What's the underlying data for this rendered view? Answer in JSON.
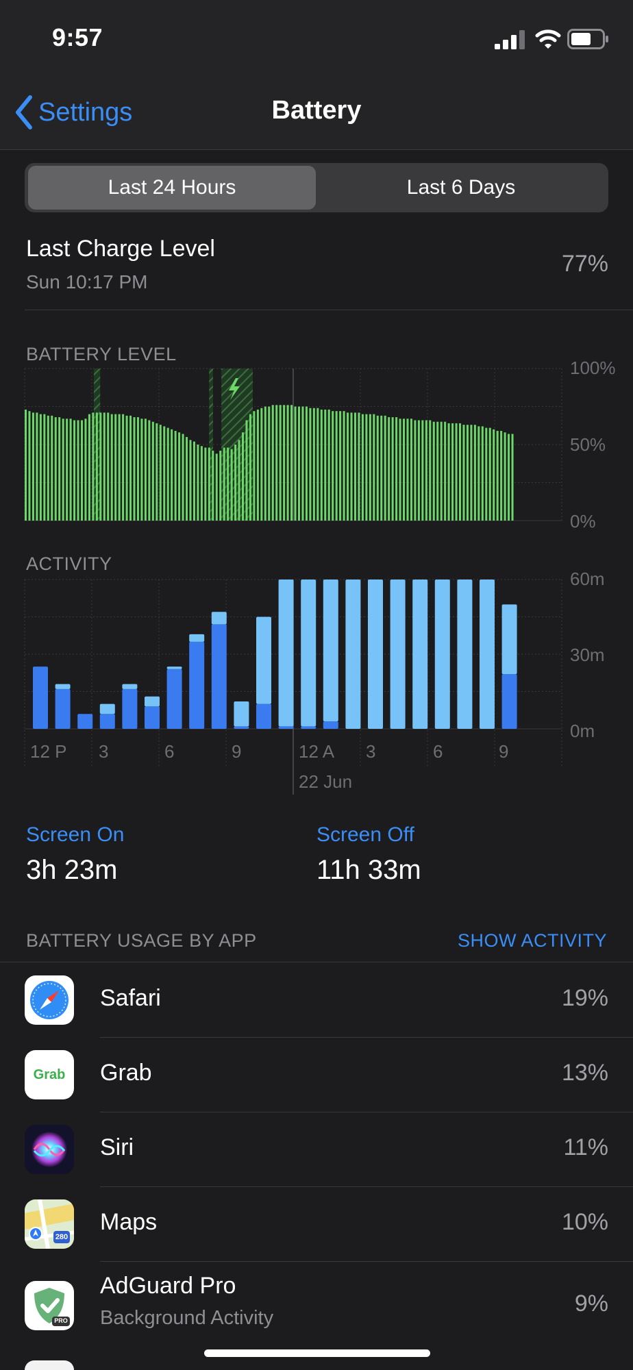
{
  "status_bar": {
    "time": "9:57"
  },
  "nav": {
    "back_label": "Settings",
    "title": "Battery"
  },
  "segments": [
    "Last 24 Hours",
    "Last 6 Days"
  ],
  "last_charge": {
    "title": "Last Charge Level",
    "subtitle": "Sun 10:17 PM",
    "value": "77%"
  },
  "colors": {
    "accent": "#3a8ef6",
    "battery_green": "#6dd86a",
    "activity_screen_on": "#3a7cf0",
    "activity_screen_off": "#77c3f8"
  },
  "chart_data": [
    {
      "type": "bar",
      "title": "BATTERY LEVEL",
      "y_ticks": [
        "100%",
        "50%",
        "0%"
      ],
      "ylim": [
        0,
        100
      ],
      "values": [
        73,
        72,
        71,
        71,
        70,
        70,
        69,
        69,
        68,
        68,
        67,
        67,
        67,
        66,
        66,
        66,
        67,
        70,
        71,
        71,
        71,
        71,
        71,
        70,
        70,
        70,
        70,
        69,
        69,
        68,
        68,
        67,
        67,
        66,
        65,
        64,
        63,
        62,
        61,
        60,
        59,
        58,
        57,
        55,
        53,
        52,
        50,
        49,
        48,
        48,
        46,
        44,
        46,
        48,
        48,
        47,
        50,
        53,
        58,
        66,
        70,
        72,
        73,
        74,
        75,
        75,
        76,
        76,
        76,
        76,
        76,
        76,
        75,
        75,
        75,
        75,
        74,
        74,
        74,
        73,
        73,
        73,
        72,
        72,
        72,
        72,
        71,
        71,
        71,
        71,
        70,
        70,
        70,
        70,
        69,
        69,
        69,
        68,
        68,
        68,
        67,
        67,
        67,
        67,
        66,
        66,
        66,
        66,
        66,
        65,
        65,
        65,
        65,
        64,
        64,
        64,
        64,
        63,
        63,
        63,
        63,
        62,
        62,
        61,
        61,
        60,
        59,
        59,
        58,
        57,
        57
      ],
      "charging_intervals": [
        [
          0.141,
          0.154
        ],
        [
          0.376,
          0.384
        ],
        [
          0.401,
          0.465
        ]
      ]
    },
    {
      "type": "bar",
      "title": "ACTIVITY",
      "y_ticks": [
        "60m",
        "30m",
        "0m"
      ],
      "ylim": [
        0,
        60
      ],
      "x_tick_labels": [
        "12 P",
        "3",
        "6",
        "9",
        "12 A",
        "3",
        "6",
        "9"
      ],
      "date_label": "22 Jun",
      "series": [
        {
          "values": [
            25,
            16,
            6,
            6,
            16,
            9,
            24,
            35,
            42,
            1,
            10,
            1,
            1,
            3,
            0,
            0,
            0,
            0,
            0,
            0,
            0,
            22
          ]
        },
        {
          "values": [
            0,
            2,
            0,
            4,
            2,
            4,
            1,
            3,
            5,
            10,
            35,
            59,
            59,
            57,
            60,
            60,
            60,
            60,
            60,
            60,
            60,
            28
          ]
        }
      ]
    }
  ],
  "screen_stats": [
    {
      "label": "Screen On",
      "value": "3h 23m"
    },
    {
      "label": "Screen Off",
      "value": "11h 33m"
    }
  ],
  "usage": {
    "header": "BATTERY USAGE BY APP",
    "action": "SHOW ACTIVITY",
    "apps": [
      {
        "name": "Safari",
        "subtitle": "",
        "percent": "19%",
        "icon": "safari-icon"
      },
      {
        "name": "Grab",
        "subtitle": "",
        "percent": "13%",
        "icon": "grab-icon",
        "icon_text": "Grab"
      },
      {
        "name": "Siri",
        "subtitle": "",
        "percent": "11%",
        "icon": "siri-icon"
      },
      {
        "name": "Maps",
        "subtitle": "",
        "percent": "10%",
        "icon": "maps-icon",
        "icon_text": "280"
      },
      {
        "name": "AdGuard Pro",
        "subtitle": "Background Activity",
        "percent": "9%",
        "icon": "adguard-icon",
        "icon_text": "PRO"
      }
    ]
  }
}
